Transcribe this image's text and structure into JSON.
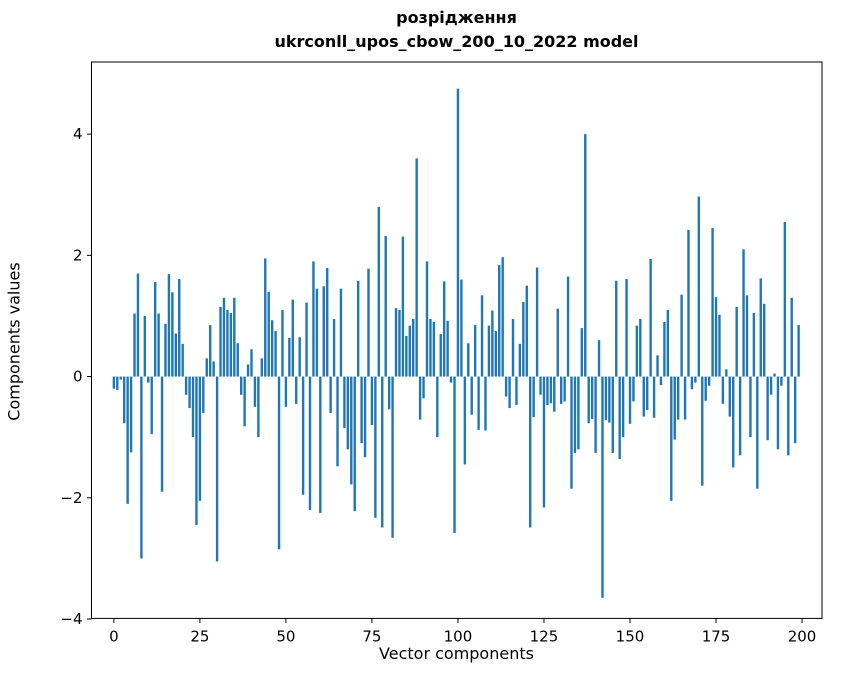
{
  "figure": {
    "title_line1": "розрідження",
    "title_line2": "ukrconll_upos_cbow_200_10_2022 model",
    "xlabel": "Vector components",
    "ylabel": "Components values"
  },
  "chart_data": {
    "type": "bar",
    "title": "розрідження ukrconll_upos_cbow_200_10_2022 model",
    "xlabel": "Vector components",
    "ylabel": "Components values",
    "legend": "none",
    "grid": false,
    "bar_color": "#1f77b4",
    "xlim": [
      -6.5,
      205.8
    ],
    "ylim": [
      -3.99,
      5.19
    ],
    "x_ticks": [
      0,
      25,
      50,
      75,
      100,
      125,
      150,
      175,
      200
    ],
    "x_tick_labels": [
      "0",
      "25",
      "50",
      "75",
      "100",
      "125",
      "150",
      "175",
      "200"
    ],
    "y_ticks": [
      -4,
      -2,
      0,
      2,
      4
    ],
    "y_tick_labels": [
      "−4",
      "−2",
      "0",
      "2",
      "4"
    ],
    "x_start": 0,
    "values": [
      -0.2,
      -0.22,
      -0.05,
      -0.77,
      -2.1,
      -1.25,
      1.04,
      1.7,
      -3.0,
      1.0,
      -0.1,
      -0.95,
      1.56,
      1.04,
      -1.9,
      0.87,
      1.69,
      1.39,
      0.71,
      1.61,
      0.54,
      -0.3,
      -0.52,
      -1.0,
      -2.45,
      -2.05,
      -0.6,
      0.3,
      0.85,
      0.25,
      -3.05,
      1.15,
      1.3,
      1.1,
      1.05,
      1.3,
      0.55,
      -0.3,
      -0.82,
      0.2,
      0.45,
      -0.5,
      -1.0,
      0.3,
      1.95,
      1.4,
      0.93,
      0.75,
      -2.85,
      1.1,
      -0.5,
      0.64,
      1.27,
      -0.45,
      0.65,
      -1.95,
      1.22,
      -2.2,
      1.9,
      1.45,
      -2.25,
      1.49,
      1.79,
      -0.6,
      0.95,
      -1.48,
      1.45,
      -0.85,
      -1.2,
      -1.78,
      -2.22,
      1.58,
      -1.1,
      -1.33,
      1.78,
      -0.8,
      -2.33,
      2.8,
      -2.49,
      2.32,
      -0.54,
      -2.66,
      1.13,
      1.1,
      2.31,
      0.67,
      0.84,
      0.95,
      3.6,
      -0.71,
      -0.36,
      1.9,
      0.95,
      0.9,
      -1.0,
      0.7,
      1.57,
      0.92,
      -0.1,
      -2.58,
      4.75,
      1.6,
      -1.45,
      0.55,
      -0.63,
      0.85,
      -0.88,
      1.34,
      -0.89,
      0.84,
      1.09,
      0.75,
      1.84,
      1.97,
      -0.33,
      -0.52,
      0.95,
      -0.47,
      0.54,
      1.23,
      1.5,
      -2.49,
      -0.67,
      1.8,
      -0.3,
      -2.16,
      -0.47,
      -0.44,
      -0.58,
      1.12,
      -0.45,
      -0.41,
      1.65,
      -1.85,
      -1.26,
      -1.2,
      0.8,
      4.0,
      -0.77,
      -0.7,
      -1.26,
      0.6,
      -3.65,
      -0.72,
      -0.76,
      -1.26,
      1.58,
      -1.36,
      -1.0,
      1.61,
      -0.78,
      -0.41,
      0.84,
      0.95,
      -0.66,
      -0.55,
      1.94,
      -0.68,
      0.35,
      -0.14,
      0.9,
      1.1,
      -2.05,
      -1.04,
      -0.71,
      1.35,
      -0.71,
      2.42,
      -0.21,
      -0.1,
      2.97,
      -1.8,
      -0.4,
      -0.15,
      2.45,
      1.31,
      1.02,
      -0.45,
      0.12,
      -0.66,
      -1.5,
      1.15,
      -1.3,
      2.1,
      1.34,
      -1.0,
      1.05,
      -1.85,
      1.62,
      1.2,
      -1.05,
      -0.3,
      0.05,
      -1.2,
      -0.15,
      2.55,
      -1.3,
      1.3,
      -1.1,
      0.85
    ]
  }
}
